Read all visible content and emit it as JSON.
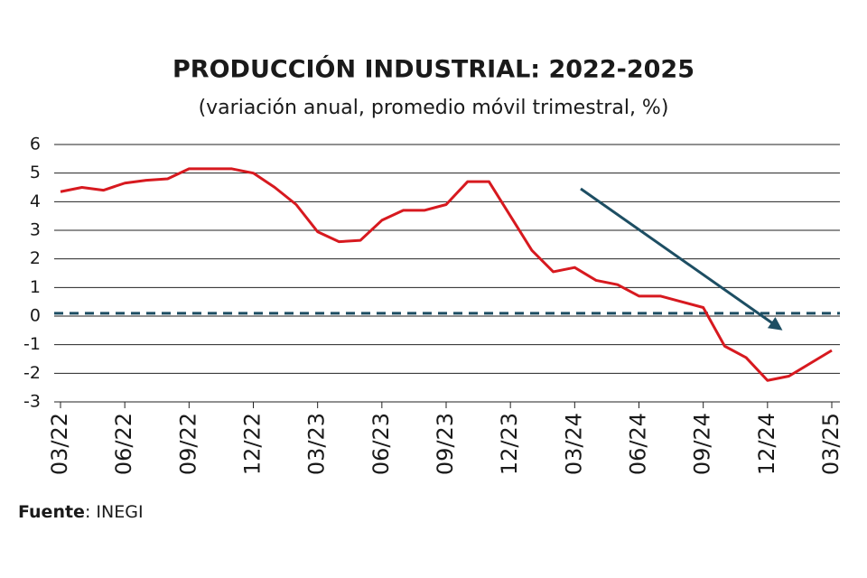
{
  "chart_data": {
    "type": "line",
    "title": "PRODUCCIÓN INDUSTRIAL: 2022-2025",
    "subtitle": "(variación anual, promedio móvil trimestral, %)",
    "categories": [
      "03/22",
      null,
      null,
      "06/22",
      null,
      null,
      "09/22",
      null,
      null,
      "12/22",
      null,
      null,
      "03/23",
      null,
      null,
      "06/23",
      null,
      null,
      "09/23",
      null,
      null,
      "12/23",
      null,
      null,
      "03/24",
      null,
      null,
      "06/24",
      null,
      null,
      "09/24",
      null,
      null,
      "12/24",
      null,
      null,
      "03/25"
    ],
    "series": [
      {
        "color": "#d7191f",
        "values": [
          4.35,
          4.5,
          4.4,
          4.65,
          4.75,
          4.8,
          5.15,
          5.15,
          5.15,
          5.0,
          4.5,
          3.9,
          2.95,
          2.6,
          2.65,
          3.35,
          3.7,
          3.7,
          3.9,
          4.7,
          4.7,
          3.5,
          2.3,
          1.55,
          1.7,
          1.25,
          1.1,
          0.7,
          0.7,
          0.5,
          0.3,
          -1.05,
          -1.45,
          -2.25,
          -2.1,
          -1.65,
          -1.2
        ]
      }
    ],
    "reference_line": {
      "value": 0.1,
      "color": "#1d4e63"
    },
    "ylim": [
      -3,
      6
    ],
    "yticks": [
      -3,
      -2,
      -1,
      0,
      1,
      2,
      3,
      4,
      5,
      6
    ],
    "grid": true,
    "source_label": "Fuente",
    "source": ": INEGI"
  }
}
